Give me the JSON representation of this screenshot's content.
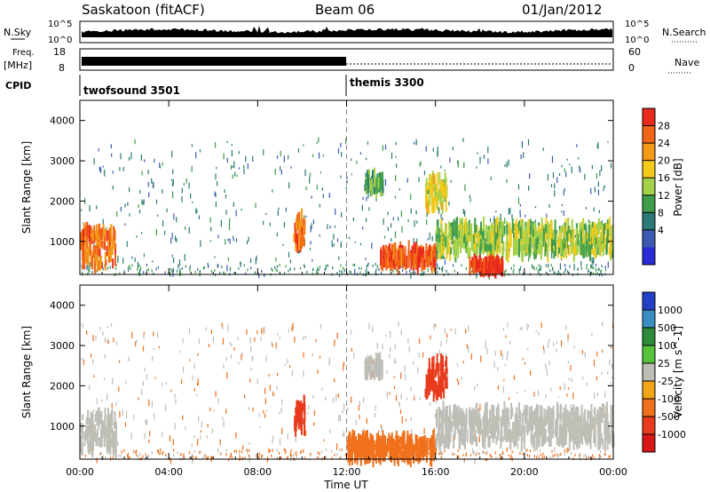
{
  "header": {
    "station": "Saskatoon (fitACF)",
    "beam": "Beam 06",
    "date": "01/Jan/2012"
  },
  "noise_panel": {
    "left_label": "N.Sky",
    "right_label": "N.Search",
    "left_ticks": [
      "10^5",
      "10^0"
    ],
    "right_ticks": [
      "10^5",
      "10^0"
    ]
  },
  "freq_panel": {
    "left_label_top": "Freq.",
    "left_label_unit": "[MHz]",
    "right_label": "Nave",
    "left_ticks": [
      "18",
      "8"
    ],
    "right_ticks": [
      "60",
      "0"
    ]
  },
  "cpid_panel": {
    "label": "CPID",
    "modes": [
      {
        "name": "twofsound 3501",
        "start_hour": 0
      },
      {
        "name": "themis 3300",
        "start_hour": 12
      }
    ]
  },
  "x_axis": {
    "label": "Time UT",
    "ticks": [
      "00:00",
      "04:00",
      "08:00",
      "12:00",
      "16:00",
      "20:00",
      "00:00"
    ]
  },
  "colorbars": {
    "power": {
      "label": "Power [dB]",
      "ticks": [
        "28",
        "24",
        "20",
        "16",
        "12",
        "8",
        "4"
      ],
      "colors": [
        "#e8291c",
        "#f26516",
        "#f39a17",
        "#f5c918",
        "#a6d14a",
        "#3f9d4b",
        "#2c7a75",
        "#3d5ab3",
        "#2a2ad6"
      ]
    },
    "velocity": {
      "label": "Velocity [m s^-1]",
      "ticks": [
        "1000",
        "500",
        "100",
        "25",
        "-25",
        "-100",
        "-500",
        "-1000"
      ],
      "colors": [
        "#2440c8",
        "#3a8fc2",
        "#2e8b3a",
        "#55c43a",
        "#bebdb6",
        "#f3a51a",
        "#f0701c",
        "#e83a1c",
        "#d81717"
      ]
    }
  },
  "chart_data": [
    {
      "type": "heatmap",
      "title": "Power",
      "xlabel": "Time UT",
      "ylabel": "Slant Range [km]",
      "xlim": [
        0,
        24
      ],
      "ylim": [
        180,
        4500
      ],
      "y_ticks": [
        1000,
        2000,
        3000,
        4000
      ],
      "colorbar_label": "Power [dB]",
      "regions": [
        {
          "t0": 0.0,
          "t1": 1.6,
          "r0": 400,
          "r1": 1300,
          "value": 24
        },
        {
          "t0": 9.6,
          "t1": 10.1,
          "r0": 900,
          "r1": 1600,
          "value": 24
        },
        {
          "t0": 12.8,
          "t1": 13.6,
          "r0": 2300,
          "r1": 2600,
          "value": 10
        },
        {
          "t0": 13.5,
          "t1": 16.0,
          "r0": 400,
          "r1": 800,
          "value": 26
        },
        {
          "t0": 15.5,
          "t1": 16.5,
          "r0": 1800,
          "r1": 2600,
          "value": 16
        },
        {
          "t0": 16.0,
          "t1": 24.0,
          "r0": 700,
          "r1": 1400,
          "value": 14
        },
        {
          "t0": 17.5,
          "t1": 19.0,
          "r0": 300,
          "r1": 500,
          "value": 28
        }
      ]
    },
    {
      "type": "heatmap",
      "title": "Velocity",
      "xlabel": "Time UT",
      "ylabel": "Slant Range [km]",
      "xlim": [
        0,
        24
      ],
      "ylim": [
        180,
        4500
      ],
      "y_ticks": [
        1000,
        2000,
        3000,
        4000
      ],
      "colorbar_label": "Velocity [m s^-1]",
      "regions": [
        {
          "t0": 0.0,
          "t1": 1.6,
          "r0": 400,
          "r1": 1300,
          "value": 0
        },
        {
          "t0": 9.6,
          "t1": 10.1,
          "r0": 900,
          "r1": 1600,
          "value": -500
        },
        {
          "t0": 12.8,
          "t1": 13.6,
          "r0": 2300,
          "r1": 2600,
          "value": 0
        },
        {
          "t0": 12.0,
          "t1": 16.0,
          "r0": 200,
          "r1": 700,
          "value": -100
        },
        {
          "t0": 15.5,
          "t1": 16.5,
          "r0": 1800,
          "r1": 2600,
          "value": -500
        },
        {
          "t0": 16.0,
          "t1": 24.0,
          "r0": 600,
          "r1": 1400,
          "value": 0
        }
      ]
    }
  ]
}
